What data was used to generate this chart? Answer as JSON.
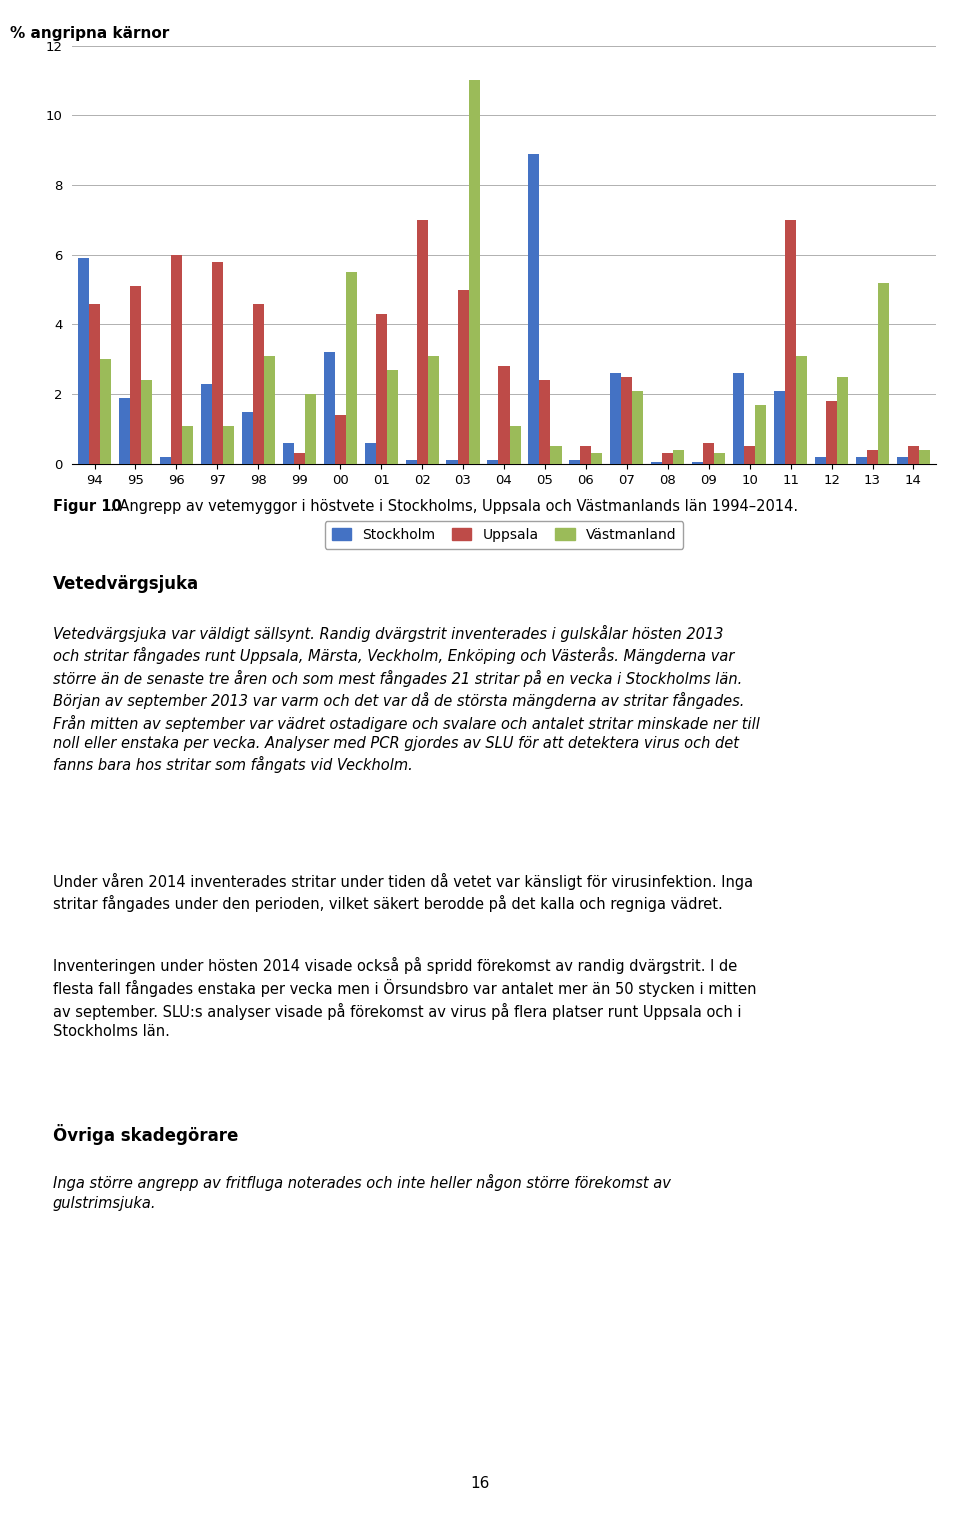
{
  "years": [
    "94",
    "95",
    "96",
    "97",
    "98",
    "99",
    "00",
    "01",
    "02",
    "03",
    "04",
    "05",
    "06",
    "07",
    "08",
    "09",
    "10",
    "11",
    "12",
    "13",
    "14"
  ],
  "stockholm": [
    5.9,
    1.9,
    0.2,
    2.3,
    1.5,
    0.6,
    3.2,
    0.6,
    0.1,
    0.1,
    0.1,
    8.9,
    0.1,
    2.6,
    0.05,
    0.05,
    2.6,
    2.1,
    0.2,
    0.2,
    0.2
  ],
  "uppsala": [
    4.6,
    5.1,
    6.0,
    5.8,
    4.6,
    0.3,
    1.4,
    4.3,
    7.0,
    5.0,
    2.8,
    2.4,
    0.5,
    2.5,
    0.3,
    0.6,
    0.5,
    7.0,
    1.8,
    0.4,
    0.5
  ],
  "vastmanland": [
    3.0,
    2.4,
    1.1,
    1.1,
    3.1,
    2.0,
    5.5,
    2.7,
    3.1,
    11.0,
    1.1,
    0.5,
    0.3,
    2.1,
    0.4,
    0.3,
    1.7,
    3.1,
    2.5,
    5.2,
    0.4
  ],
  "ylabel": "% angripna kärnor",
  "ylim": [
    0,
    12
  ],
  "yticks": [
    0,
    2,
    4,
    6,
    8,
    10,
    12
  ],
  "bar_colors": [
    "#4472C4",
    "#BE4B48",
    "#9BBB59"
  ],
  "legend_labels": [
    "Stockholm",
    "Uppsala",
    "Västmanland"
  ],
  "figcaption_bold": "Figur 10",
  "figcaption_normal": ". Angrepp av vetemyggor i höstvete i Stockholms, Uppsala och Västmanlands län 1994–2014.",
  "section_heading": "Vetedvärgsjuka",
  "section_heading2": "Övriga skadegörare",
  "page_number": "16"
}
